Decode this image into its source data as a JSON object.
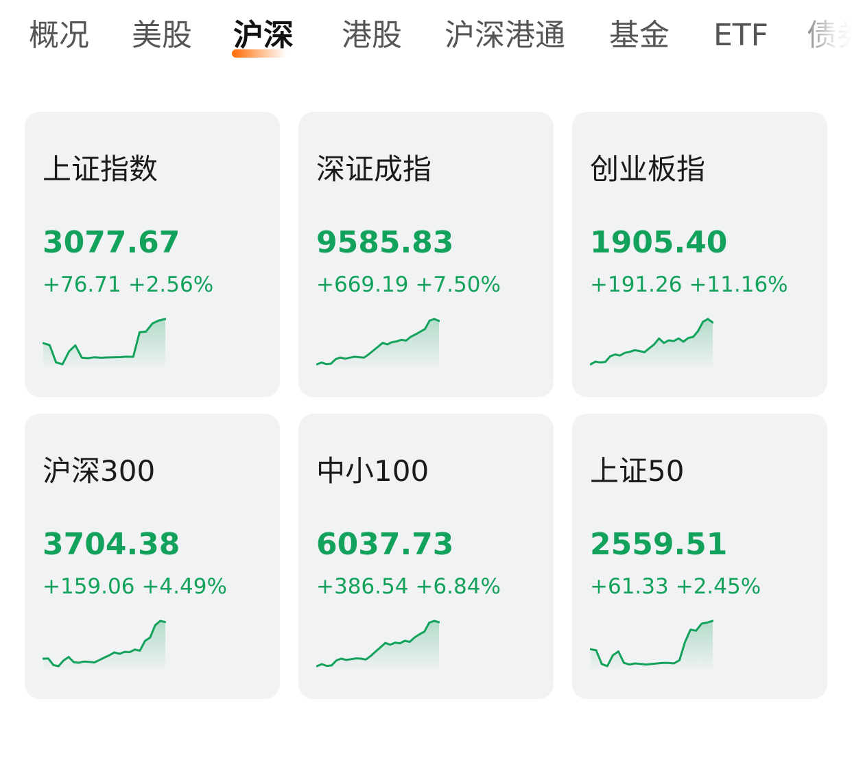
{
  "accent_color": "#ff6a00",
  "up_color": "#13a25c",
  "tabs": [
    {
      "label": "概况",
      "active": false
    },
    {
      "label": "美股",
      "active": false
    },
    {
      "label": "沪深",
      "active": true
    },
    {
      "label": "港股",
      "active": false
    },
    {
      "label": "沪深港通",
      "active": false
    },
    {
      "label": "基金",
      "active": false
    },
    {
      "label": "ETF",
      "active": false
    },
    {
      "label": "债券",
      "active": false
    }
  ],
  "indices": [
    {
      "name": "上证指数",
      "price": "3077.67",
      "change": "+76.71",
      "change_pct": "+2.56%",
      "sparkline": [
        3000.5,
        2999.2,
        2987.4,
        2986.1,
        2994.8,
        2999.0,
        2990.7,
        2990.3,
        2990.9,
        2990.6,
        2990.8,
        2990.9,
        2991.0,
        2991.3,
        2991.2,
        3008.0,
        3008.5,
        3014.0,
        3016.0,
        3017.0
      ]
    },
    {
      "name": "深证成指",
      "price": "9585.83",
      "change": "+669.19",
      "change_pct": "+7.50%",
      "sparkline": [
        8922,
        8945,
        8925,
        8930,
        8990,
        9010,
        8995,
        9008,
        9020,
        9015,
        9008,
        9050,
        9100,
        9150,
        9200,
        9180,
        9210,
        9220,
        9240,
        9230,
        9280,
        9310,
        9345,
        9380,
        9490,
        9510,
        9485
      ]
    },
    {
      "name": "创业板指",
      "price": "1905.40",
      "change": "+191.26",
      "change_pct": "+11.16%",
      "sparkline": [
        1715,
        1725,
        1722,
        1724,
        1745,
        1752,
        1748,
        1758,
        1762,
        1768,
        1765,
        1760,
        1775,
        1790,
        1812,
        1795,
        1805,
        1802,
        1812,
        1800,
        1814,
        1818,
        1840,
        1875,
        1885,
        1872
      ]
    },
    {
      "name": "沪深300",
      "price": "3704.38",
      "change": "+159.06",
      "change_pct": "+4.49%",
      "sparkline": [
        3548,
        3549,
        3526,
        3522,
        3542,
        3554,
        3536,
        3534,
        3538,
        3537,
        3535,
        3543,
        3552,
        3560,
        3570,
        3565,
        3572,
        3571,
        3580,
        3576,
        3610,
        3622,
        3665,
        3680,
        3676
      ]
    },
    {
      "name": "中小100",
      "price": "6037.73",
      "change": "+386.54",
      "change_pct": "+6.84%",
      "sparkline": [
        5660,
        5674,
        5662,
        5665,
        5700,
        5712,
        5703,
        5708,
        5714,
        5712,
        5706,
        5730,
        5760,
        5790,
        5820,
        5808,
        5822,
        5818,
        5835,
        5828,
        5858,
        5880,
        5898,
        5960,
        5972,
        5963
      ]
    },
    {
      "name": "上证50",
      "price": "2559.51",
      "change": "+61.33",
      "change_pct": "+2.45%",
      "sparkline": [
        2499,
        2497,
        2472,
        2468,
        2488,
        2495,
        2474,
        2471,
        2473,
        2472,
        2471,
        2472,
        2473,
        2474,
        2474,
        2473,
        2479,
        2512,
        2535,
        2533,
        2546,
        2548,
        2551
      ]
    }
  ]
}
